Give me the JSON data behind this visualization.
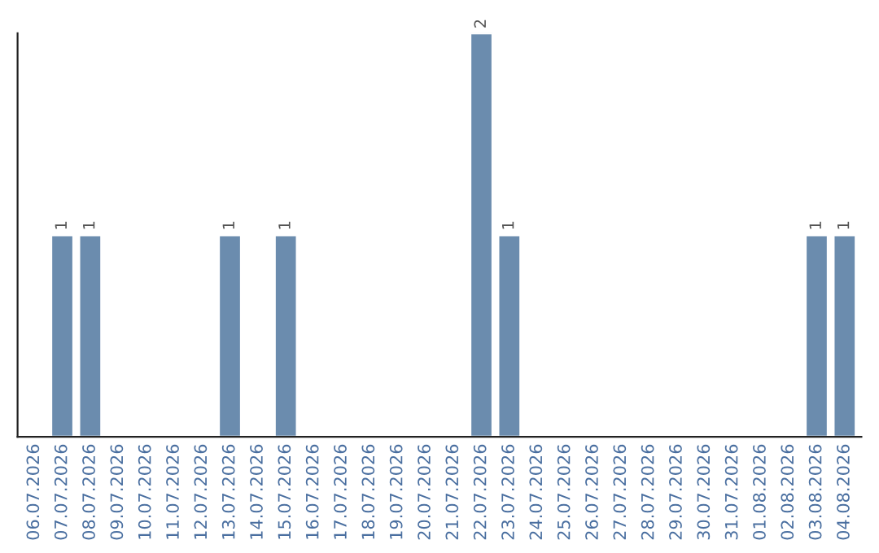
{
  "chart_data": {
    "type": "bar",
    "categories": [
      "06.07.2026",
      "07.07.2026",
      "08.07.2026",
      "09.07.2026",
      "10.07.2026",
      "11.07.2026",
      "12.07.2026",
      "13.07.2026",
      "14.07.2026",
      "15.07.2026",
      "16.07.2026",
      "17.07.2026",
      "18.07.2026",
      "19.07.2026",
      "20.07.2026",
      "21.07.2026",
      "22.07.2026",
      "23.07.2026",
      "24.07.2026",
      "25.07.2026",
      "26.07.2026",
      "27.07.2026",
      "28.07.2026",
      "29.07.2026",
      "30.07.2026",
      "31.07.2026",
      "01.08.2026",
      "02.08.2026",
      "03.08.2026",
      "04.08.2026"
    ],
    "values": [
      null,
      1,
      1,
      null,
      null,
      null,
      null,
      1,
      null,
      1,
      null,
      null,
      null,
      null,
      null,
      null,
      2,
      1,
      null,
      null,
      null,
      null,
      null,
      null,
      null,
      null,
      null,
      null,
      1,
      1
    ],
    "color": "#6b8cae",
    "ylim": [
      0,
      2
    ],
    "tick_labels": "x",
    "data_labels": true,
    "grid": false,
    "legend": false
  }
}
